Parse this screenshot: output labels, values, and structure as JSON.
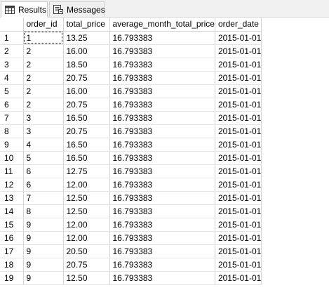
{
  "tabs": [
    {
      "label": "Results",
      "icon": "grid-icon",
      "active": true
    },
    {
      "label": "Messages",
      "icon": "messages-icon",
      "active": false
    }
  ],
  "grid": {
    "columns": [
      "",
      "order_id",
      "total_price",
      "average_month_total_price",
      "order_date"
    ],
    "rows": [
      [
        "1",
        "1",
        "13.25",
        "16.793383",
        "2015-01-01"
      ],
      [
        "2",
        "2",
        "16.00",
        "16.793383",
        "2015-01-01"
      ],
      [
        "3",
        "2",
        "18.50",
        "16.793383",
        "2015-01-01"
      ],
      [
        "4",
        "2",
        "20.75",
        "16.793383",
        "2015-01-01"
      ],
      [
        "5",
        "2",
        "16.00",
        "16.793383",
        "2015-01-01"
      ],
      [
        "6",
        "2",
        "20.75",
        "16.793383",
        "2015-01-01"
      ],
      [
        "7",
        "3",
        "16.50",
        "16.793383",
        "2015-01-01"
      ],
      [
        "8",
        "3",
        "20.75",
        "16.793383",
        "2015-01-01"
      ],
      [
        "9",
        "4",
        "16.50",
        "16.793383",
        "2015-01-01"
      ],
      [
        "10",
        "5",
        "16.50",
        "16.793383",
        "2015-01-01"
      ],
      [
        "11",
        "6",
        "12.75",
        "16.793383",
        "2015-01-01"
      ],
      [
        "12",
        "6",
        "12.00",
        "16.793383",
        "2015-01-01"
      ],
      [
        "13",
        "7",
        "12.50",
        "16.793383",
        "2015-01-01"
      ],
      [
        "14",
        "8",
        "12.50",
        "16.793383",
        "2015-01-01"
      ],
      [
        "15",
        "9",
        "12.00",
        "16.793383",
        "2015-01-01"
      ],
      [
        "16",
        "9",
        "12.00",
        "16.793383",
        "2015-01-01"
      ],
      [
        "17",
        "9",
        "20.50",
        "16.793383",
        "2015-01-01"
      ],
      [
        "18",
        "9",
        "20.75",
        "16.793383",
        "2015-01-01"
      ],
      [
        "19",
        "9",
        "12.50",
        "16.793383",
        "2015-01-01"
      ]
    ],
    "selected_cell": {
      "row": 0,
      "col": 1
    }
  }
}
